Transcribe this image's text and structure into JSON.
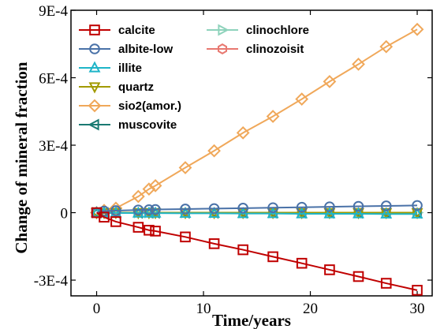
{
  "chart_data": {
    "type": "line",
    "xlabel": "Time/years",
    "ylabel": "Change of mineral fraction",
    "xlim": [
      -2.4,
      31.4
    ],
    "ylim": [
      -0.00037,
      0.0009
    ],
    "xticks": [
      0,
      10,
      20,
      30
    ],
    "yticks": [
      {
        "value": -0.0003,
        "label": "-3E-4"
      },
      {
        "value": 0,
        "label": "0"
      },
      {
        "value": 0.0003,
        "label": "3E-4"
      },
      {
        "value": 0.0006,
        "label": "6E-4"
      },
      {
        "value": 0.0009,
        "label": "9E-4"
      }
    ],
    "legend_position": "top-left",
    "x": [
      0,
      0.7,
      1.8,
      3.9,
      4.9,
      5.5,
      8.3,
      11.0,
      13.7,
      16.5,
      19.2,
      21.8,
      24.5,
      27.1,
      30.0
    ],
    "series": [
      {
        "name": "calcite",
        "color": "#c00000",
        "marker": "square",
        "values": [
          0,
          -2e-05,
          -4e-05,
          -6.5e-05,
          -7.8e-05,
          -8.2e-05,
          -0.000108,
          -0.000138,
          -0.000165,
          -0.000196,
          -0.000225,
          -0.000254,
          -0.000284,
          -0.000314,
          -0.000345
        ]
      },
      {
        "name": "albite-low",
        "color": "#4a72a8",
        "marker": "circle",
        "values": [
          0,
          7e-06,
          9e-06,
          1.2e-05,
          1.3e-05,
          1.4e-05,
          1.6e-05,
          1.8e-05,
          2e-05,
          2.2e-05,
          2.4e-05,
          2.6e-05,
          2.8e-05,
          3e-05,
          3.2e-05
        ]
      },
      {
        "name": "illite",
        "color": "#1fb5c8",
        "marker": "triangle-up",
        "values": [
          0,
          -1e-06,
          -1e-06,
          -2e-06,
          -2e-06,
          -2e-06,
          -3e-06,
          -3e-06,
          -4e-06,
          -4e-06,
          -5e-06,
          -5e-06,
          -5e-06,
          -6e-06,
          -6e-06
        ]
      },
      {
        "name": "quartz",
        "color": "#a29a00",
        "marker": "triangle-down",
        "values": [
          0,
          0,
          0,
          0,
          0,
          0,
          0,
          0,
          0,
          0,
          0,
          0,
          0,
          0,
          0
        ]
      },
      {
        "name": "sio2(amor.)",
        "color": "#f0a85a",
        "marker": "diamond",
        "values": [
          0,
          1e-05,
          2e-05,
          7.2e-05,
          0.000105,
          0.00012,
          0.0002,
          0.000275,
          0.000355,
          0.000428,
          0.000505,
          0.000583,
          0.00066,
          0.000738,
          0.000815
        ]
      },
      {
        "name": "muscovite",
        "color": "#1a7a72",
        "marker": "triangle-left",
        "values": [
          0,
          -1e-06,
          -1e-06,
          -1e-06,
          -1e-06,
          -1e-06,
          -1e-06,
          -1e-06,
          -1e-06,
          -1e-06,
          -1e-06,
          -1e-06,
          -1e-06,
          -1e-06,
          -1e-06
        ]
      },
      {
        "name": "clinochlore",
        "color": "#8fd3bc",
        "marker": "triangle-right",
        "values": [
          0,
          0,
          0,
          0,
          0,
          0,
          0,
          0,
          0,
          0,
          0,
          0,
          0,
          0,
          0
        ]
      },
      {
        "name": "clinozoisit",
        "color": "#e87870",
        "marker": "hexagon",
        "values": [
          0,
          -1e-06,
          -1e-06,
          -1e-06,
          -1e-06,
          -1e-06,
          -1e-06,
          -1e-06,
          -1e-06,
          -1e-06,
          -1e-06,
          -1e-06,
          -1e-06,
          -1e-06,
          -1e-06
        ]
      }
    ]
  }
}
